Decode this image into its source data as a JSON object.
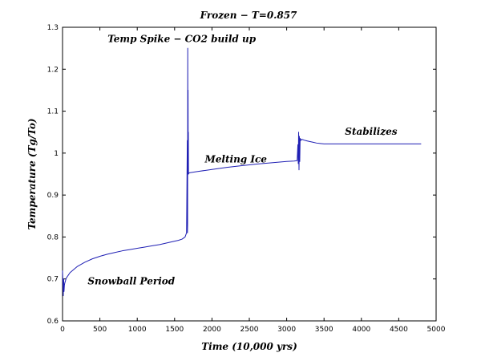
{
  "chart_data": {
    "type": "line",
    "title": "Frozen − T=0.857",
    "xlabel": "Time (10,000 yrs)",
    "ylabel": "Temperature (Tg/To)",
    "xlim": [
      0,
      5000
    ],
    "ylim": [
      0.6,
      1.3
    ],
    "xticks": [
      0,
      500,
      1000,
      1500,
      2000,
      2500,
      3000,
      3500,
      4000,
      4500,
      5000
    ],
    "yticks": [
      0.6,
      0.7,
      0.8,
      0.9,
      1.0,
      1.1,
      1.2,
      1.3
    ],
    "xtick_labels": [
      "0",
      "500",
      "1000",
      "1500",
      "2000",
      "2500",
      "3000",
      "3500",
      "4000",
      "4500",
      "5000"
    ],
    "ytick_labels": [
      "0.6",
      "0.7",
      "0.8",
      "0.9",
      "1",
      "1.1",
      "1.2",
      "1.3"
    ],
    "grid": false,
    "legend": "none",
    "line_color": "#1f1fb4",
    "series": [
      {
        "x": [
          0,
          10,
          15,
          20,
          25,
          30,
          50,
          100,
          200,
          300,
          400,
          500,
          600,
          700,
          800,
          900,
          1000,
          1100,
          1200,
          1300,
          1400,
          1500,
          1550,
          1600,
          1640,
          1660,
          1670,
          1672,
          1674,
          1676,
          1678,
          1680,
          1682,
          1684,
          1686,
          1690,
          1700,
          1800,
          2000,
          2200,
          2400,
          2600,
          2800,
          3000,
          3100,
          3140,
          3150,
          3155,
          3160,
          3165,
          3170,
          3175,
          3180,
          3190,
          3200,
          3250,
          3300,
          3350,
          3400,
          3450,
          3500,
          3600,
          3800,
          4000,
          4200,
          4400,
          4600,
          4800
        ],
        "y": [
          0.72,
          0.66,
          0.7,
          0.67,
          0.685,
          0.69,
          0.702,
          0.715,
          0.73,
          0.74,
          0.748,
          0.754,
          0.759,
          0.763,
          0.767,
          0.77,
          0.773,
          0.776,
          0.779,
          0.782,
          0.786,
          0.79,
          0.792,
          0.795,
          0.8,
          0.81,
          1.03,
          0.81,
          0.83,
          1.25,
          0.97,
          1.15,
          0.95,
          1.05,
          0.95,
          0.952,
          0.953,
          0.956,
          0.961,
          0.966,
          0.97,
          0.974,
          0.977,
          0.98,
          0.981,
          0.982,
          1.02,
          0.975,
          1.05,
          0.96,
          1.04,
          0.98,
          1.035,
          1.03,
          1.033,
          1.03,
          1.028,
          1.026,
          1.024,
          1.023,
          1.022,
          1.022,
          1.022,
          1.022,
          1.022,
          1.022,
          1.022,
          1.022
        ]
      }
    ],
    "annotations": [
      {
        "text": "Temp Spike − CO2 build up",
        "x": 1595,
        "y": 1.265
      },
      {
        "text": "Melting Ice",
        "x": 2320,
        "y": 0.978
      },
      {
        "text": "Stabilizes",
        "x": 4130,
        "y": 1.044
      },
      {
        "text": "Snowball Period",
        "x": 920,
        "y": 0.687
      }
    ]
  }
}
